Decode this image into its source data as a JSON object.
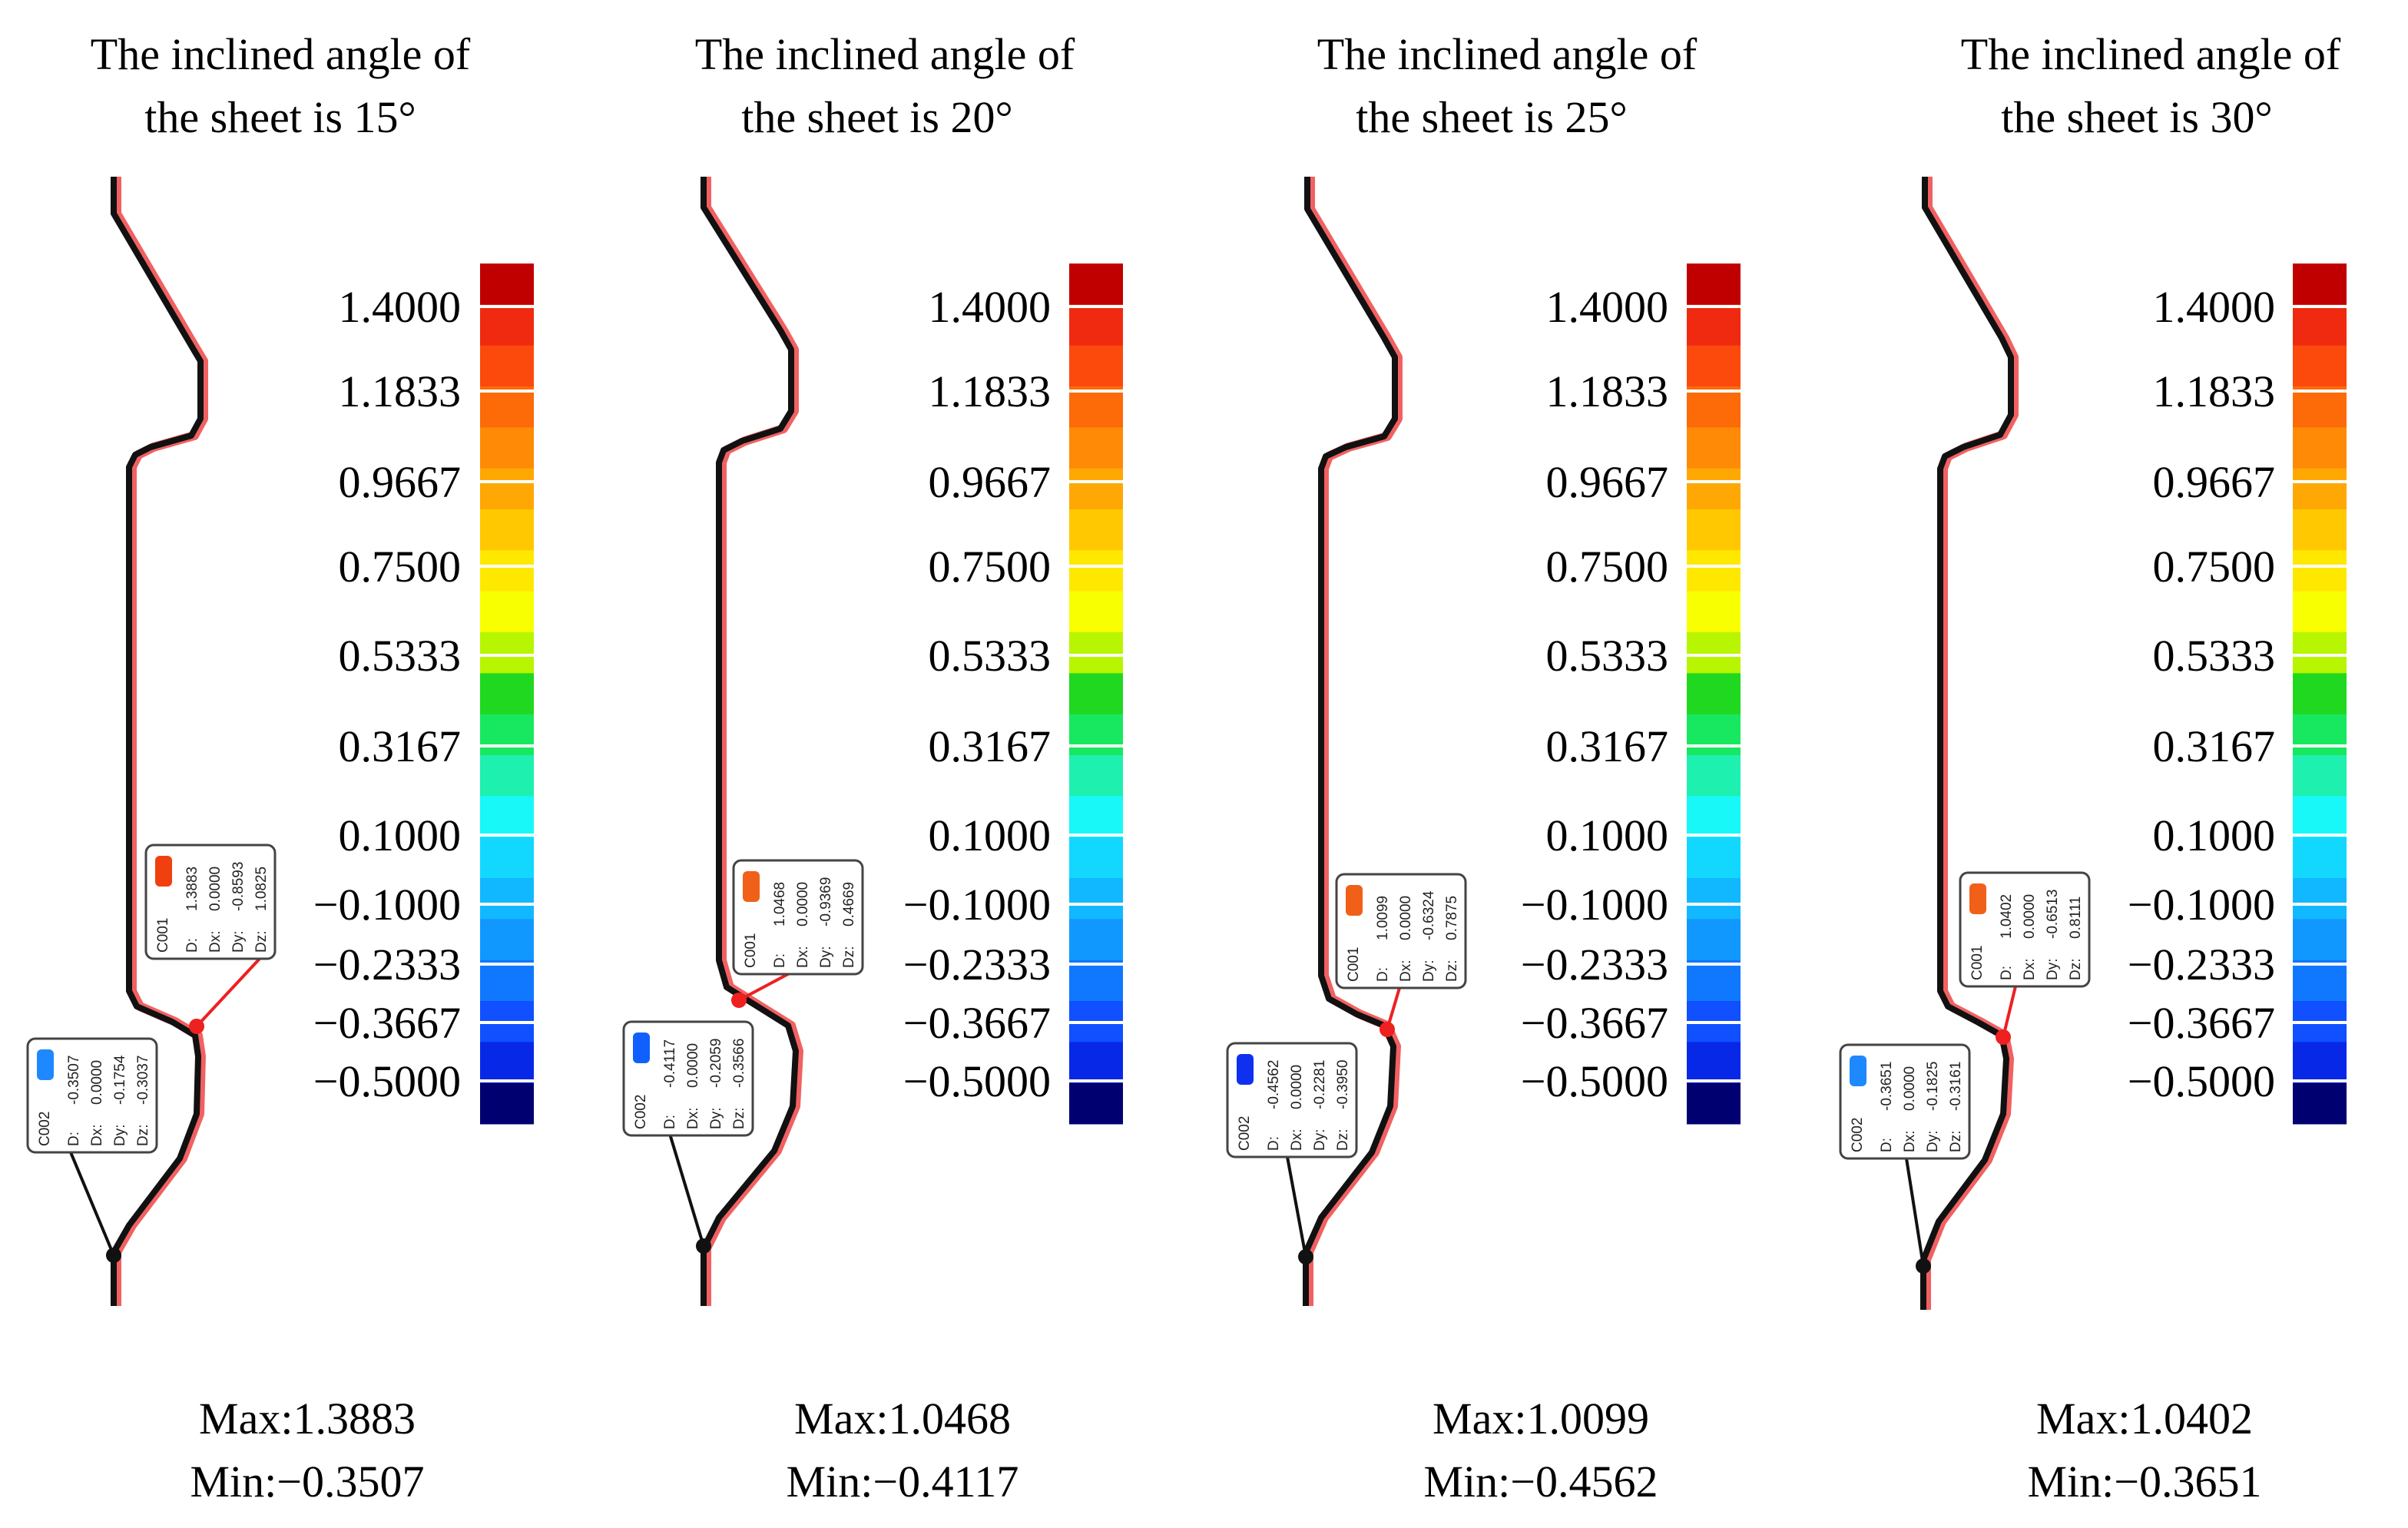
{
  "figure": {
    "legend_ticks": [
      "1.4000",
      "1.1833",
      "0.9667",
      "0.7500",
      "0.5333",
      "0.3167",
      "0.1000",
      "−0.1000",
      "−0.2333",
      "−0.3667",
      "−0.5000"
    ],
    "legend_colors": [
      "#c00000",
      "#f02a10",
      "#fb4a0c",
      "#fd6a08",
      "#fe8a06",
      "#ffa804",
      "#ffc800",
      "#ffe800",
      "#f8ff00",
      "#b8f500",
      "#20d820",
      "#18e860",
      "#1ef0b0",
      "#18f8f8",
      "#12d8ff",
      "#12b8ff",
      "#1098ff",
      "#1078ff",
      "#1050ff",
      "#0828e8",
      "#000070"
    ],
    "panels": [
      {
        "title_line1": "The inclined angle of",
        "title_line2": "the sheet is 15°",
        "max_label": "Max:1.3883",
        "min_label": "Min:−0.3507",
        "c001": {
          "id": "C001",
          "rows": [
            "D:",
            "Dx:",
            "Dy:",
            "Dz:"
          ],
          "values": [
            "1.3883",
            "0.0000",
            "-0.8593",
            "1.0825"
          ],
          "swatch": "#f04010"
        },
        "c002": {
          "id": "C002",
          "rows": [
            "D:",
            "Dx:",
            "Dy:",
            "Dz:"
          ],
          "values": [
            "-0.3507",
            "0.0000",
            "-0.1754",
            "-0.3037"
          ],
          "swatch": "#1e88ff"
        }
      },
      {
        "title_line1": "The inclined angle of",
        "title_line2": "the sheet is 20°",
        "max_label": "Max:1.0468",
        "min_label": "Min:−0.4117",
        "c001": {
          "id": "C001",
          "rows": [
            "D:",
            "Dx:",
            "Dy:",
            "Dz:"
          ],
          "values": [
            "1.0468",
            "0.0000",
            "-0.9369",
            "0.4669"
          ],
          "swatch": "#f06018"
        },
        "c002": {
          "id": "C002",
          "rows": [
            "D:",
            "Dx:",
            "Dy:",
            "Dz:"
          ],
          "values": [
            "-0.4117",
            "0.0000",
            "-0.2059",
            "-0.3566"
          ],
          "swatch": "#1060ff"
        }
      },
      {
        "title_line1": "The inclined angle of",
        "title_line2": "the sheet is 25°",
        "max_label": "Max:1.0099",
        "min_label": "Min:−0.4562",
        "c001": {
          "id": "C001",
          "rows": [
            "D:",
            "Dx:",
            "Dy:",
            "Dz:"
          ],
          "values": [
            "1.0099",
            "0.0000",
            "-0.6324",
            "0.7875"
          ],
          "swatch": "#f06018"
        },
        "c002": {
          "id": "C002",
          "rows": [
            "D:",
            "Dx:",
            "Dy:",
            "Dz:"
          ],
          "values": [
            "-0.4562",
            "0.0000",
            "-0.2281",
            "-0.3950"
          ],
          "swatch": "#1030f0"
        }
      },
      {
        "title_line1": "The inclined angle of",
        "title_line2": "the sheet is 30°",
        "max_label": "Max:1.0402",
        "min_label": "Min:−0.3651",
        "c001": {
          "id": "C001",
          "rows": [
            "D:",
            "Dx:",
            "Dy:",
            "Dz:"
          ],
          "values": [
            "1.0402",
            "0.0000",
            "-0.6513",
            "0.8111"
          ],
          "swatch": "#f06018"
        },
        "c002": {
          "id": "C002",
          "rows": [
            "D:",
            "Dx:",
            "Dy:",
            "Dz:"
          ],
          "values": [
            "-0.3651",
            "0.0000",
            "-0.1825",
            "-0.3161"
          ],
          "swatch": "#1e88ff"
        }
      }
    ]
  }
}
